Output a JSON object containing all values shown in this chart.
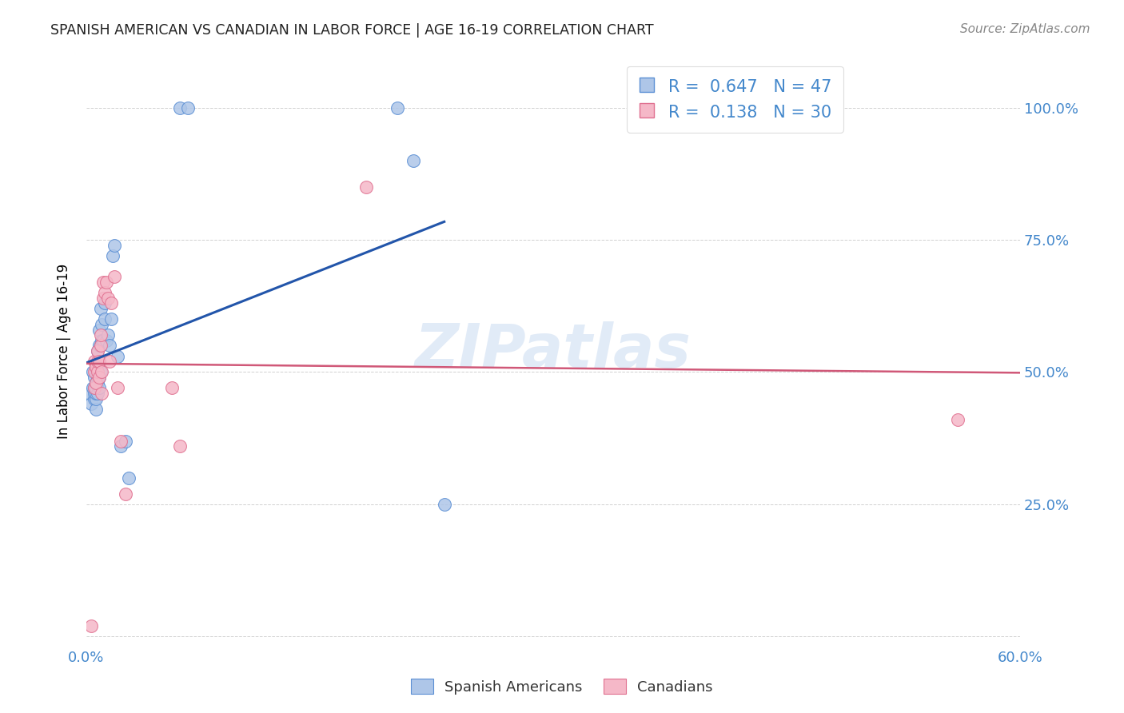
{
  "title": "SPANISH AMERICAN VS CANADIAN IN LABOR FORCE | AGE 16-19 CORRELATION CHART",
  "source": "Source: ZipAtlas.com",
  "ylabel": "In Labor Force | Age 16-19",
  "xlim": [
    0.0,
    0.6
  ],
  "ylim": [
    -0.02,
    1.1
  ],
  "ytick_vals": [
    0.0,
    0.25,
    0.5,
    0.75,
    1.0
  ],
  "xtick_vals": [
    0.0,
    0.1,
    0.2,
    0.3,
    0.4,
    0.5,
    0.6
  ],
  "blue_R": 0.647,
  "blue_N": 47,
  "pink_R": 0.138,
  "pink_N": 30,
  "blue_color": "#aec6e8",
  "blue_edge_color": "#5b8fd4",
  "blue_line_color": "#2255aa",
  "pink_color": "#f5b8c8",
  "pink_edge_color": "#e07090",
  "pink_line_color": "#d05878",
  "watermark": "ZIPatlas",
  "blue_scatter_x": [
    0.002,
    0.003,
    0.004,
    0.004,
    0.005,
    0.005,
    0.005,
    0.005,
    0.006,
    0.006,
    0.006,
    0.006,
    0.006,
    0.006,
    0.007,
    0.007,
    0.007,
    0.007,
    0.007,
    0.008,
    0.008,
    0.008,
    0.008,
    0.008,
    0.009,
    0.009,
    0.009,
    0.01,
    0.01,
    0.011,
    0.012,
    0.012,
    0.013,
    0.014,
    0.015,
    0.016,
    0.017,
    0.018,
    0.02,
    0.022,
    0.025,
    0.027,
    0.06,
    0.065,
    0.2,
    0.21,
    0.23
  ],
  "blue_scatter_y": [
    0.46,
    0.44,
    0.47,
    0.5,
    0.45,
    0.46,
    0.47,
    0.49,
    0.43,
    0.45,
    0.46,
    0.47,
    0.48,
    0.5,
    0.46,
    0.48,
    0.49,
    0.52,
    0.54,
    0.47,
    0.49,
    0.52,
    0.55,
    0.58,
    0.5,
    0.55,
    0.62,
    0.56,
    0.59,
    0.56,
    0.6,
    0.63,
    0.56,
    0.57,
    0.55,
    0.6,
    0.72,
    0.74,
    0.53,
    0.36,
    0.37,
    0.3,
    1.0,
    1.0,
    1.0,
    0.9,
    0.25
  ],
  "pink_scatter_x": [
    0.003,
    0.005,
    0.005,
    0.005,
    0.006,
    0.006,
    0.007,
    0.007,
    0.007,
    0.008,
    0.008,
    0.009,
    0.009,
    0.01,
    0.01,
    0.011,
    0.011,
    0.012,
    0.013,
    0.014,
    0.015,
    0.016,
    0.018,
    0.02,
    0.022,
    0.025,
    0.055,
    0.06,
    0.18,
    0.56
  ],
  "pink_scatter_y": [
    0.02,
    0.47,
    0.5,
    0.52,
    0.48,
    0.51,
    0.5,
    0.52,
    0.54,
    0.49,
    0.52,
    0.55,
    0.57,
    0.46,
    0.5,
    0.64,
    0.67,
    0.65,
    0.67,
    0.64,
    0.52,
    0.63,
    0.68,
    0.47,
    0.37,
    0.27,
    0.47,
    0.36,
    0.85,
    0.41
  ]
}
